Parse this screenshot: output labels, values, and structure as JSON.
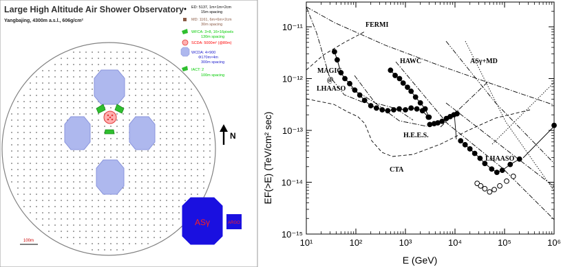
{
  "layout_panel": {
    "title": "Large High Altitude Air Shower Observatory",
    "subtitle": "Yangbajing, 4300m a.s.l., 606g/cm²",
    "legend": [
      {
        "label": "ED: 5137, 1m×1m×2cm",
        "sub": "15m spacing",
        "color": "#000000",
        "icon": "dot-icon"
      },
      {
        "label": "MD: 1161, 6m×6m×2cm",
        "sub": "30m spacing",
        "color": "#8a5a44",
        "icon": "square-icon"
      },
      {
        "label": "WFCA: 3×8, 16×16pixels",
        "sub": "130m spacing",
        "color": "#00cc00",
        "icon": "telescope-icon"
      },
      {
        "label": "SCDA: 5000m² (@80m)",
        "sub": "",
        "color": "#ff0000",
        "icon": "hatched-circle-icon"
      },
      {
        "label": "WCDA: 4×900",
        "sub": "Φ170m×4m",
        "sub2": "300m spacing",
        "color": "#1a1acc",
        "icon": "octagon-icon"
      },
      {
        "label": "IACT: 2",
        "sub": "100m spacing",
        "color": "#00cc00",
        "icon": "telescope-icon"
      }
    ],
    "north_label": "N",
    "scale_label": "100m",
    "asg_label": "ASγ",
    "argo_label": "ARGO",
    "colors": {
      "wcda_fill": "#aeb8ee",
      "wcda_stroke": "#3a48c8",
      "asg_fill": "#1a10e0",
      "scda": "#e23a3a",
      "iact": "#2fbf2f",
      "dots": "#555555",
      "border": "#666666",
      "label_red": "#ff2020"
    }
  },
  "chart_data": {
    "type": "line",
    "xlabel": "E (GeV)",
    "ylabel": "EF(>E)  (TeV/cm² sec)",
    "x_scale": "log",
    "y_scale": "log",
    "xlim": [
      10,
      1000000
    ],
    "ylim": [
      1e-15,
      3e-11
    ],
    "x_tick_labels": [
      "10¹",
      "10²",
      "10³",
      "10⁴",
      "10⁵",
      "10⁶"
    ],
    "y_tick_labels": [
      "10⁻¹¹",
      "10⁻¹²",
      "10⁻¹³",
      "10⁻¹⁴",
      "10⁻¹⁵"
    ],
    "x_ticks": [
      10,
      100,
      1000,
      10000,
      100000,
      1000000
    ],
    "y_ticks": [
      1e-11,
      1e-12,
      1e-13,
      1e-14,
      1e-15
    ],
    "annotations": [
      "FERMI",
      "MAGIC",
      "@",
      "LHAASO",
      "HAWC",
      "ASγ+MD",
      "H.E.E.S.",
      "CTA",
      "LHAASO"
    ],
    "series": [
      {
        "points": [
          [
            37,
            3.3e-12
          ],
          [
            42,
            2.3e-12
          ],
          [
            50,
            1.3e-12
          ],
          [
            60,
            1e-12
          ],
          [
            75,
            8e-13
          ],
          [
            95,
            6e-13
          ],
          [
            120,
            4.8e-13
          ],
          [
            150,
            3.8e-13
          ],
          [
            200,
            3e-13
          ],
          [
            260,
            2.7e-13
          ],
          [
            340,
            2.5e-13
          ],
          [
            440,
            2.4e-13
          ],
          [
            580,
            2.5e-13
          ],
          [
            750,
            2.6e-13
          ],
          [
            1000,
            2.5e-13
          ],
          [
            1300,
            2.7e-13
          ],
          [
            1700,
            2.6e-13
          ],
          [
            2200,
            2.4e-13
          ],
          [
            2900,
            1.8e-13
          ]
        ],
        "style": "filled"
      },
      {
        "points": [
          [
            500,
            1.45e-12
          ],
          [
            620,
            1.15e-12
          ],
          [
            760,
            1e-12
          ],
          [
            900,
            8.2e-13
          ],
          [
            1100,
            6.8e-13
          ],
          [
            1300,
            5.7e-13
          ],
          [
            1600,
            4.4e-13
          ],
          [
            2000,
            3.4e-13
          ],
          [
            2500,
            2.6e-13
          ],
          [
            3000,
            1.8e-13
          ]
        ],
        "style": "filled"
      },
      {
        "points": [
          [
            3100,
            1.3e-13
          ],
          [
            3800,
            1.35e-13
          ],
          [
            4500,
            1.4e-13
          ],
          [
            5500,
            1.5e-13
          ],
          [
            6700,
            1.7e-13
          ],
          [
            8000,
            1.85e-13
          ],
          [
            9500,
            2e-13
          ],
          [
            11000,
            2.1e-13
          ]
        ],
        "style": "filled"
      },
      {
        "points": [
          [
            13000,
            6.3e-14
          ],
          [
            16000,
            5.3e-14
          ],
          [
            20000,
            4.4e-14
          ],
          [
            25000,
            3.6e-14
          ],
          [
            32000,
            2.9e-14
          ],
          [
            40000,
            2.3e-14
          ],
          [
            55000,
            1.8e-14
          ],
          [
            70000,
            1.55e-14
          ],
          [
            90000,
            1.7e-14
          ],
          [
            130000,
            2.2e-14
          ],
          [
            200000,
            2.8e-14
          ]
        ],
        "style": "filled"
      },
      {
        "points": [
          [
            1000000,
            1.25e-13
          ]
        ],
        "style": "filled"
      },
      {
        "points": [
          [
            28000,
            9.5e-15
          ],
          [
            33000,
            8.5e-15
          ],
          [
            40000,
            7.5e-15
          ],
          [
            50000,
            6.5e-15
          ],
          [
            62000,
            7.2e-15
          ],
          [
            80000,
            8.5e-15
          ],
          [
            110000,
            1.05e-14
          ],
          [
            150000,
            1.3e-14
          ]
        ],
        "style": "open"
      }
    ]
  }
}
